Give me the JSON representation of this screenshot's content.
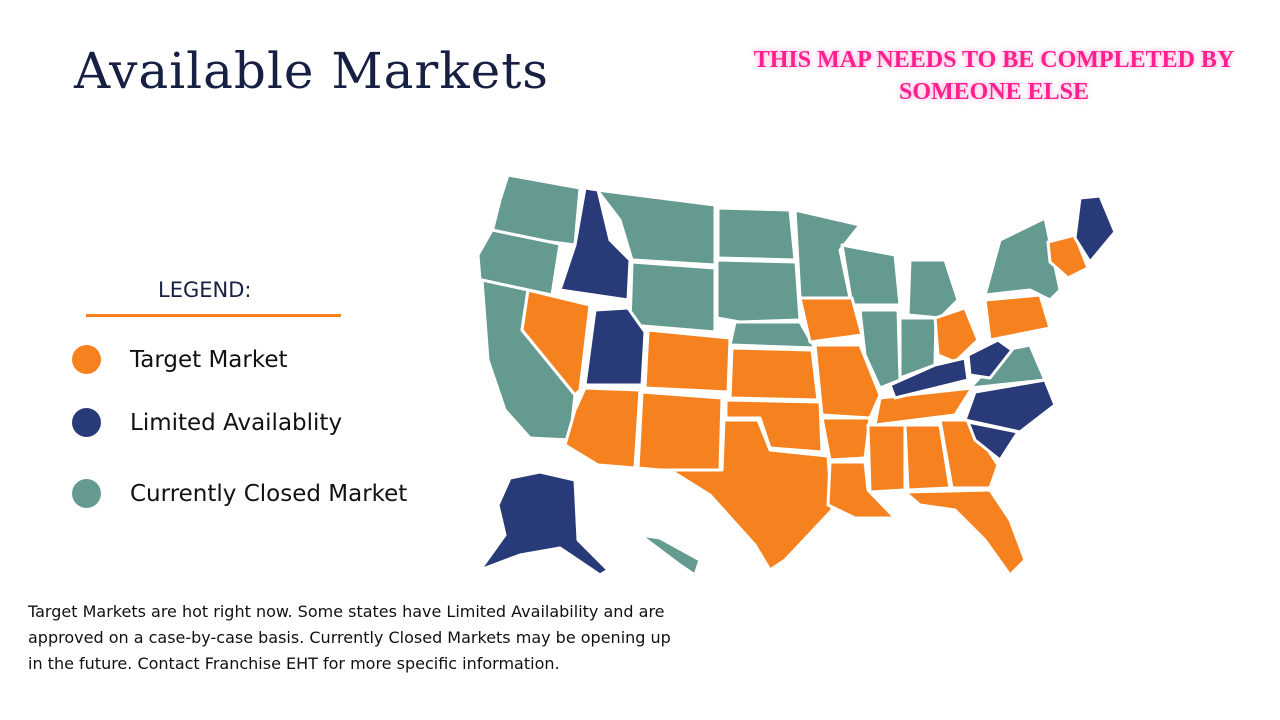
{
  "header": {
    "title": "Available Markets",
    "notice": "THIS MAP NEEDS TO BE COMPLETED BY SOMEONE ELSE"
  },
  "legend": {
    "title": "LEGEND:",
    "items": [
      {
        "label": "Target Market",
        "color": "#f5821f"
      },
      {
        "label": "Limited Availablity",
        "color": "#293a78"
      },
      {
        "label": "Currently Closed Market",
        "color": "#659a91"
      }
    ]
  },
  "footnote": "Target Markets are hot right now.  Some states have Limited Availability and are approved on a case-by-case basis.  Currently Closed Markets may be opening up in the future.  Contact Franchise EHT for more specific information."
}
